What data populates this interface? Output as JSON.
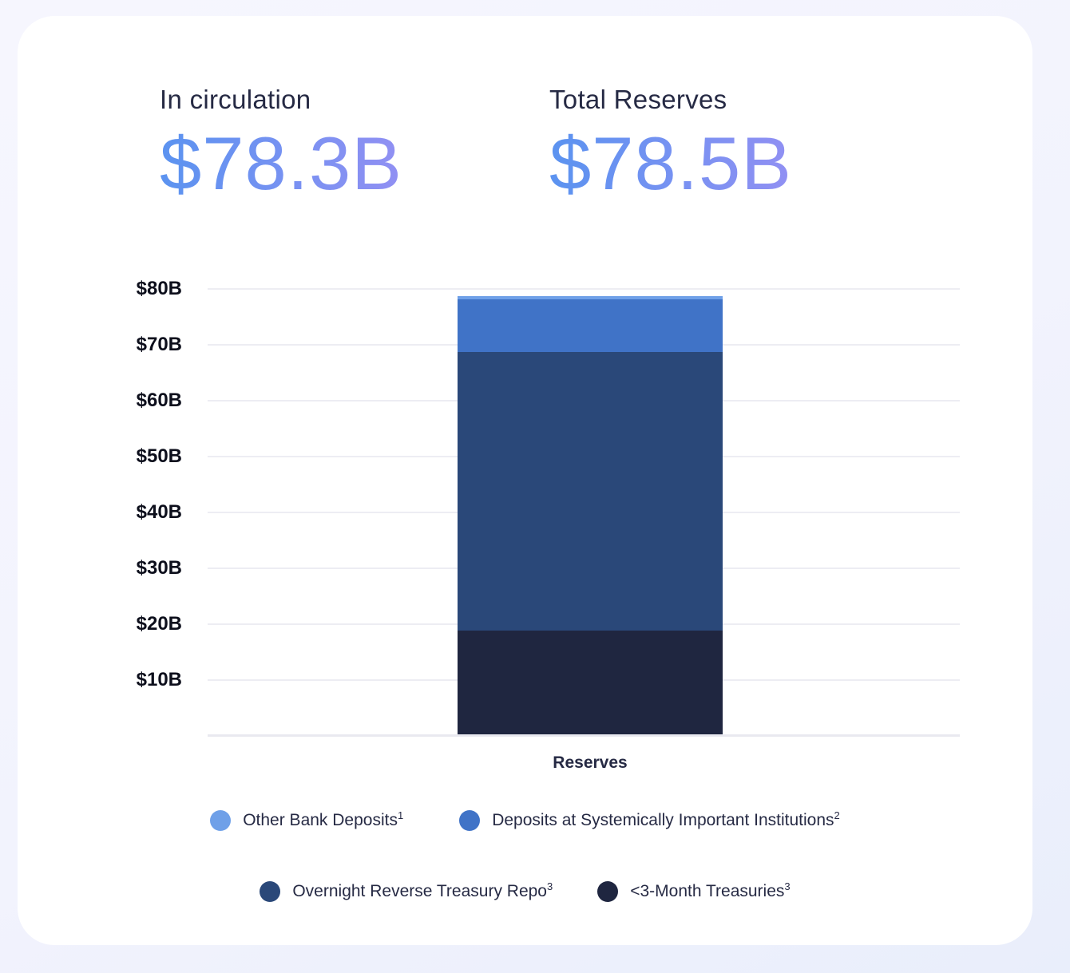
{
  "stats": [
    {
      "label": "In circulation",
      "value": "$78.3B"
    },
    {
      "label": "Total Reserves",
      "value": "$78.5B"
    }
  ],
  "chart_data": {
    "type": "bar",
    "stacked": true,
    "categories": [
      "Reserves"
    ],
    "xlabel": "Reserves",
    "ylabel": "",
    "ylim": [
      0,
      80
    ],
    "ytick_interval": 10,
    "yticks": [
      "$10B",
      "$20B",
      "$30B",
      "$40B",
      "$50B",
      "$60B",
      "$70B",
      "$80B"
    ],
    "grid": true,
    "total_billions": 78.5,
    "series": [
      {
        "name": "<3-Month Treasuries",
        "footnote": "3",
        "values": [
          18.6
        ],
        "color": "#1f2640"
      },
      {
        "name": "Overnight Reverse Treasury Repo",
        "footnote": "3",
        "values": [
          49.8
        ],
        "color": "#2a4879"
      },
      {
        "name": "Deposits at Systemically Important Institutions",
        "footnote": "2",
        "values": [
          9.5
        ],
        "color": "#4073c7"
      },
      {
        "name": "Other Bank Deposits",
        "footnote": "1",
        "values": [
          0.6
        ],
        "color": "#6fa0e8"
      }
    ],
    "legend_position": "bottom",
    "legend_rows": [
      [
        {
          "label": "Other Bank Deposits",
          "sup": "1",
          "color": "#6fa0e8"
        },
        {
          "label": "Deposits at Systemically Important Institutions",
          "sup": "2",
          "color": "#4073c7"
        }
      ],
      [
        {
          "label": "Overnight Reverse Treasury Repo",
          "sup": "3",
          "color": "#2a4879"
        },
        {
          "label": "<3-Month Treasuries",
          "sup": "3",
          "color": "#1f2640"
        }
      ]
    ]
  },
  "colors": {
    "stat_value_gradient": [
      "#5b93f0",
      "#9190f3"
    ],
    "card_background": "#ffffff",
    "page_background": "#f2f3fd",
    "tick_label": "#0d0f1c",
    "gridline": "#ededf3"
  }
}
